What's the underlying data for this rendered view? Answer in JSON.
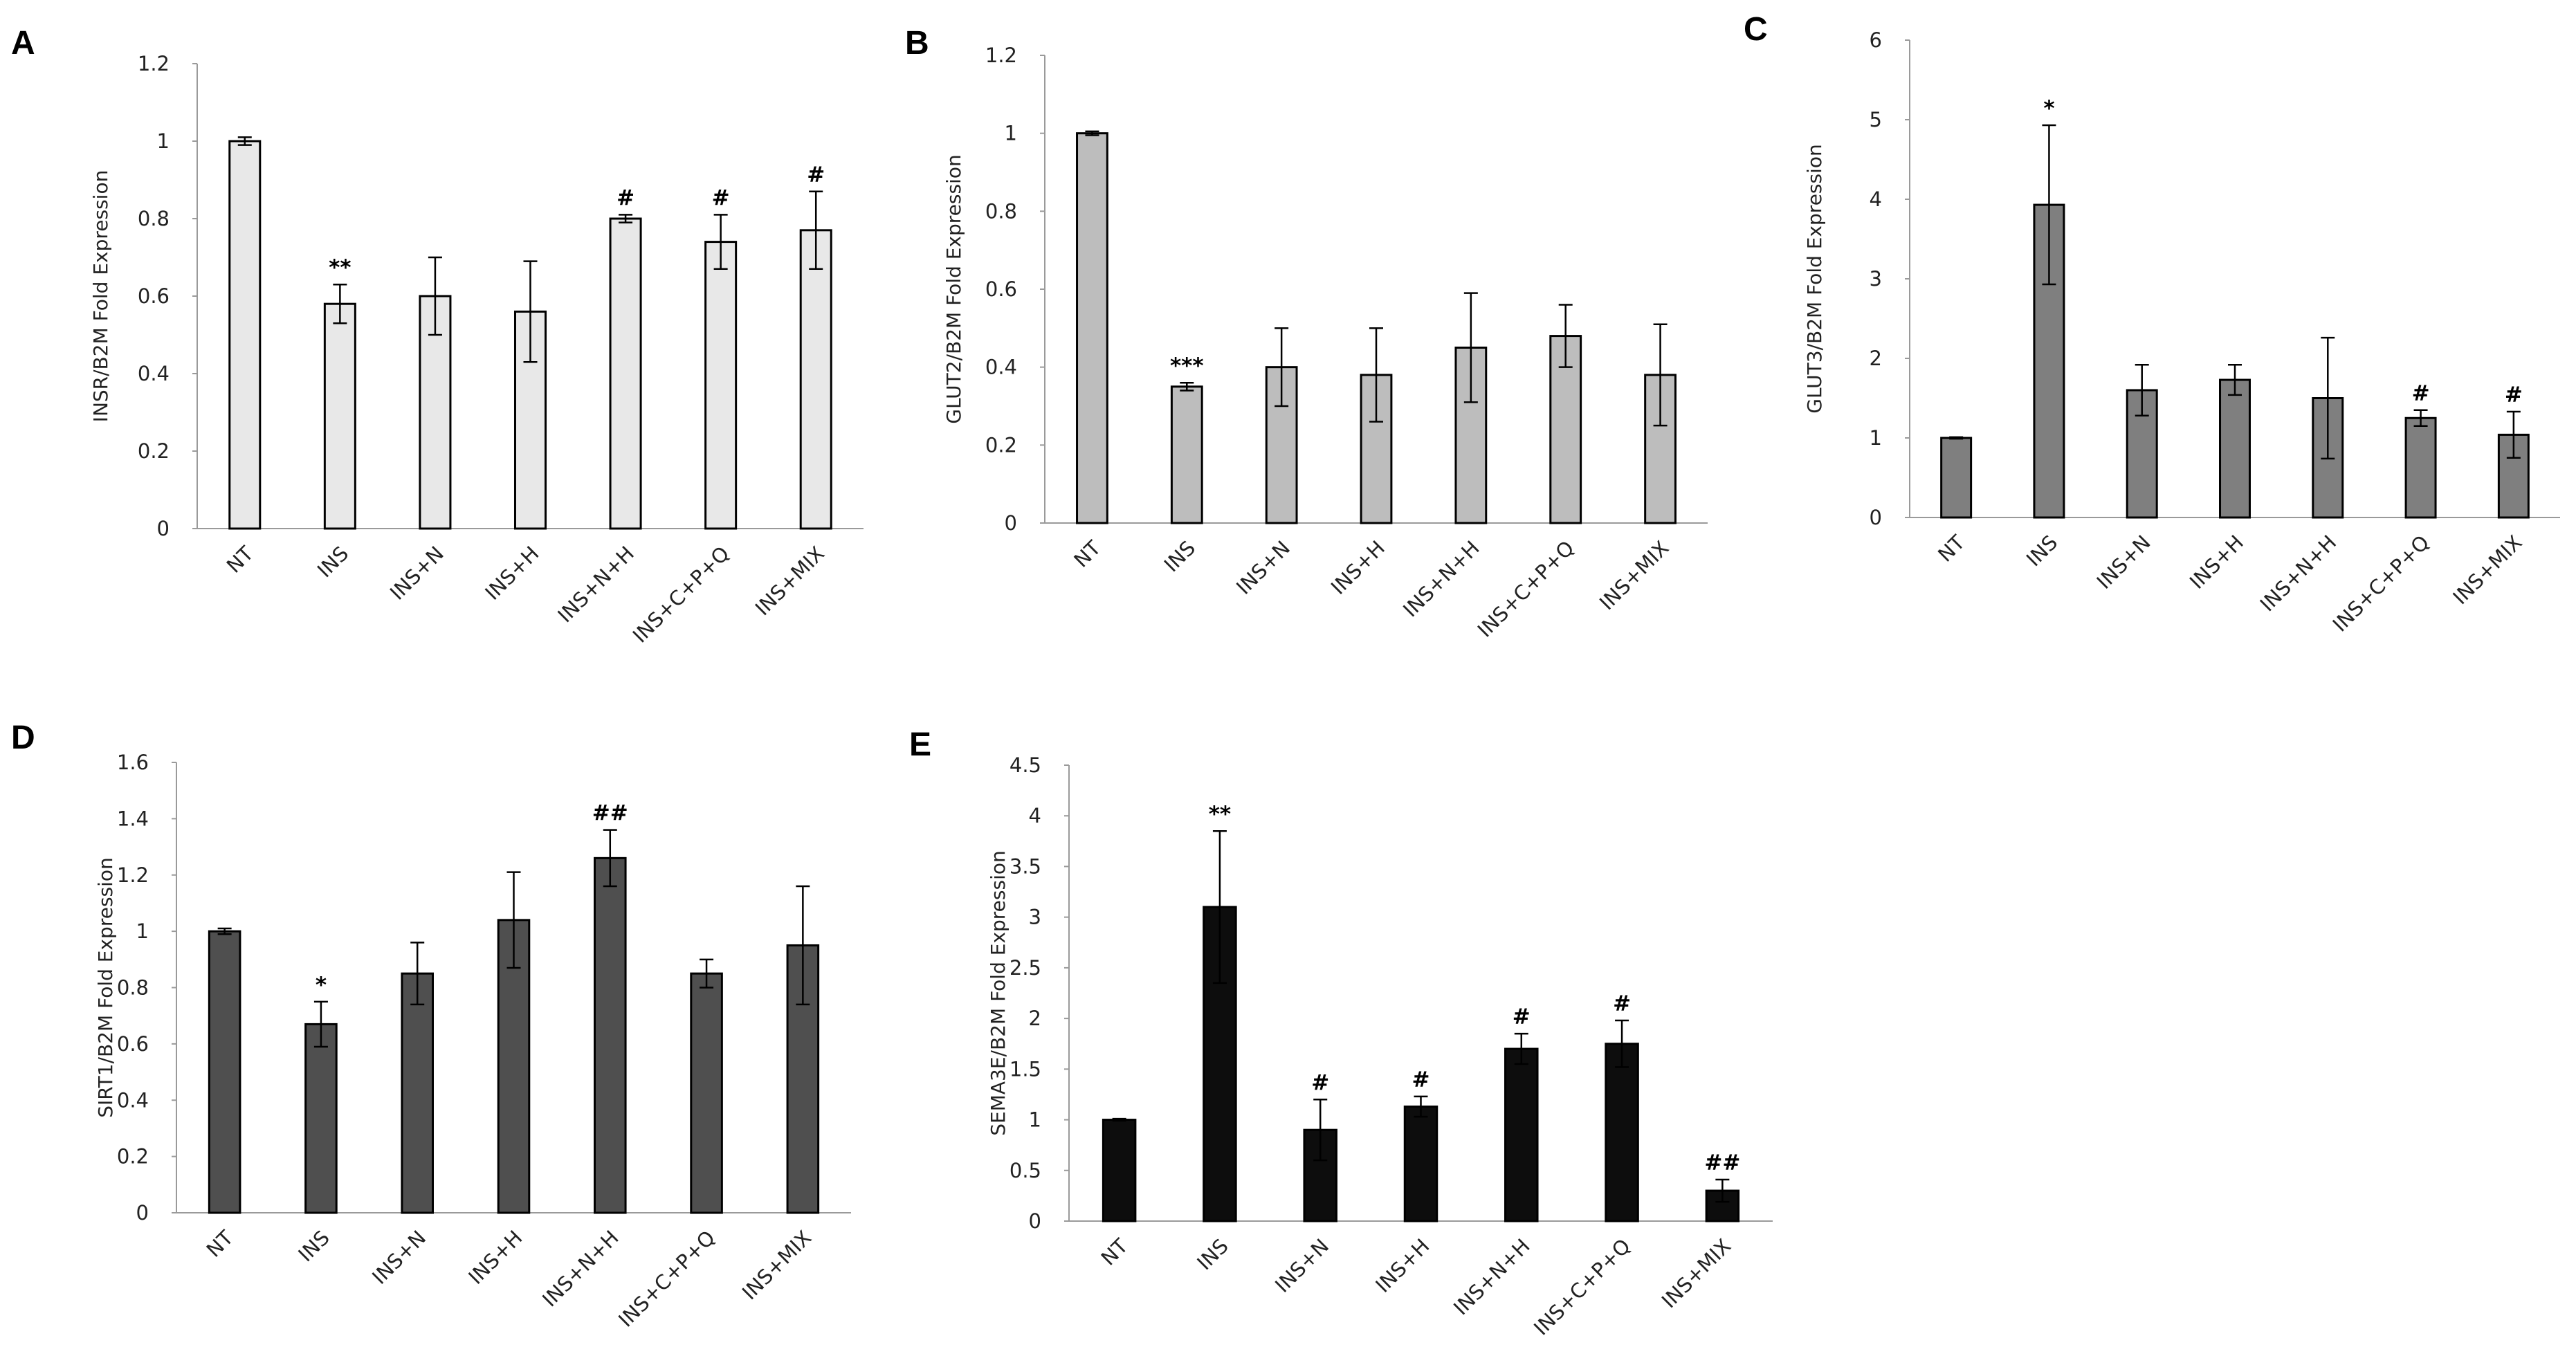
{
  "chart_data": [
    {
      "panel": "A",
      "type": "bar",
      "categories": [
        "NT",
        "INS",
        "INS+N",
        "INS+H",
        "INS+N+H",
        "INS+C+P+Q",
        "INS+MIX"
      ],
      "values": [
        1.0,
        0.58,
        0.6,
        0.56,
        0.8,
        0.74,
        0.77
      ],
      "errors": [
        0.01,
        0.05,
        0.1,
        0.13,
        0.01,
        0.07,
        0.1
      ],
      "significance": [
        "",
        "**",
        "",
        "",
        "#",
        "#",
        "#"
      ],
      "ylabel": "INSR/B2M Fold Expression",
      "ylim": [
        0,
        1.2
      ],
      "yticks": [
        0,
        0.2,
        0.4,
        0.6,
        0.8,
        1,
        1.2
      ],
      "ytick_labels": [
        "0",
        "0.2",
        "0.4",
        "0.6",
        "0.8",
        "1",
        "1.2"
      ],
      "bar_color": "#e8e8e8"
    },
    {
      "panel": "B",
      "type": "bar",
      "categories": [
        "NT",
        "INS",
        "INS+N",
        "INS+H",
        "INS+N+H",
        "INS+C+P+Q",
        "INS+MIX"
      ],
      "values": [
        1.0,
        0.35,
        0.4,
        0.38,
        0.45,
        0.48,
        0.38
      ],
      "errors": [
        0.005,
        0.01,
        0.1,
        0.12,
        0.14,
        0.08,
        0.13
      ],
      "significance": [
        "",
        "***",
        "",
        "",
        "",
        "",
        ""
      ],
      "ylabel": "GLUT2/B2M Fold Expression",
      "ylim": [
        0,
        1.2
      ],
      "yticks": [
        0,
        0.2,
        0.4,
        0.6,
        0.8,
        1,
        1.2
      ],
      "ytick_labels": [
        "0",
        "0.2",
        "0.4",
        "0.6",
        "0.8",
        "1",
        "1.2"
      ],
      "bar_color": "#bdbdbd"
    },
    {
      "panel": "C",
      "type": "bar",
      "categories": [
        "NT",
        "INS",
        "INS+N",
        "INS+H",
        "INS+N+H",
        "INS+C+P+Q",
        "INS+MIX"
      ],
      "values": [
        1.0,
        3.93,
        1.6,
        1.73,
        1.5,
        1.25,
        1.04
      ],
      "errors": [
        0.01,
        1.0,
        0.32,
        0.19,
        0.76,
        0.1,
        0.29
      ],
      "significance": [
        "",
        "*",
        "",
        "",
        "",
        "#",
        "#"
      ],
      "ylabel": "GLUT3/B2M Fold Expression",
      "ylim": [
        0,
        6
      ],
      "yticks": [
        0,
        1,
        2,
        3,
        4,
        5,
        6
      ],
      "ytick_labels": [
        "0",
        "1",
        "2",
        "3",
        "4",
        "5",
        "6"
      ],
      "bar_color": "#7f7f7f"
    },
    {
      "panel": "D",
      "type": "bar",
      "categories": [
        "NT",
        "INS",
        "INS+N",
        "INS+H",
        "INS+N+H",
        "INS+C+P+Q",
        "INS+MIX"
      ],
      "values": [
        1.0,
        0.67,
        0.85,
        1.04,
        1.26,
        0.85,
        0.95
      ],
      "errors": [
        0.01,
        0.08,
        0.11,
        0.17,
        0.1,
        0.05,
        0.21
      ],
      "significance": [
        "",
        "*",
        "",
        "",
        "##",
        "",
        ""
      ],
      "ylabel": "SIRT1/B2M Fold Expression",
      "ylim": [
        0,
        1.6
      ],
      "yticks": [
        0,
        0.2,
        0.4,
        0.6,
        0.8,
        1,
        1.2,
        1.4,
        1.6
      ],
      "ytick_labels": [
        "0",
        "0.2",
        "0.4",
        "0.6",
        "0.8",
        "1",
        "1.2",
        "1.4",
        "1.6"
      ],
      "bar_color": "#4f4f4f"
    },
    {
      "panel": "E",
      "type": "bar",
      "categories": [
        "NT",
        "INS",
        "INS+N",
        "INS+H",
        "INS+N+H",
        "INS+C+P+Q",
        "INS+MIX"
      ],
      "values": [
        1.0,
        3.1,
        0.9,
        1.13,
        1.7,
        1.75,
        0.3
      ],
      "errors": [
        0.01,
        0.75,
        0.3,
        0.1,
        0.15,
        0.23,
        0.11
      ],
      "significance": [
        "",
        "**",
        "#",
        "#",
        "#",
        "#",
        "##"
      ],
      "ylabel": "SEMA3E/B2M Fold Expression",
      "ylim": [
        0,
        4.5
      ],
      "yticks": [
        0,
        0.5,
        1,
        1.5,
        2,
        2.5,
        3,
        3.5,
        4,
        4.5
      ],
      "ytick_labels": [
        "0",
        "0.5",
        "1",
        "1.5",
        "2",
        "2.5",
        "3",
        "3.5",
        "4",
        "4.5"
      ],
      "bar_color": "#0d0d0d"
    }
  ]
}
